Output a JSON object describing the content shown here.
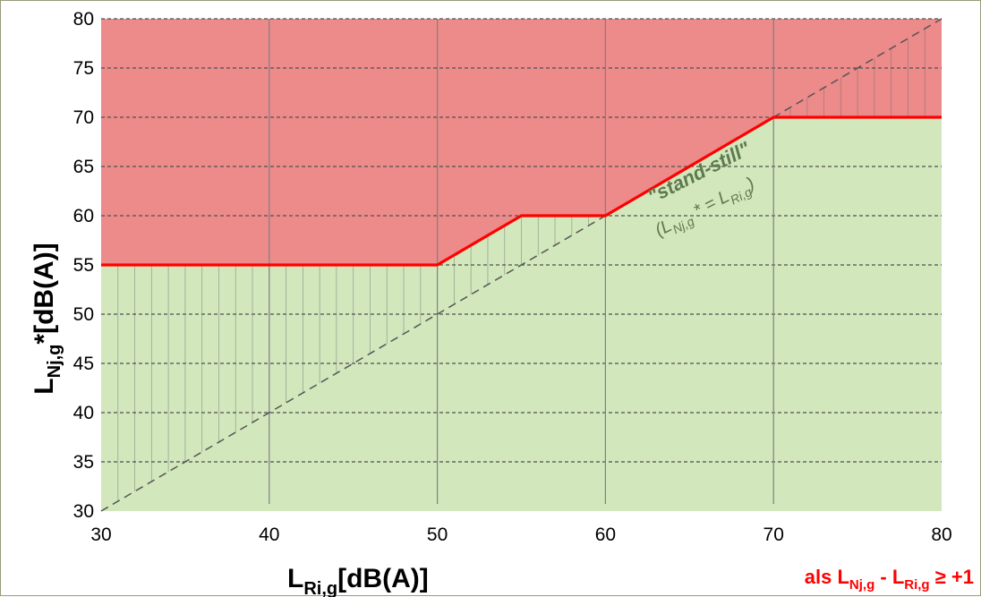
{
  "chart_data": {
    "type": "area",
    "xlim": [
      30,
      80
    ],
    "ylim": [
      30,
      80
    ],
    "x_ticks": [
      "30",
      "40",
      "50",
      "60",
      "70",
      "80"
    ],
    "y_ticks": [
      "30",
      "35",
      "40",
      "45",
      "50",
      "55",
      "60",
      "65",
      "70",
      "75",
      "80"
    ],
    "grid": true,
    "xlabel": {
      "main": "L",
      "sub": "Ri,g",
      "rest": "[dB(A)]"
    },
    "ylabel": {
      "main": "L",
      "sub": "Nj,g",
      "rest": "*[dB(A)]"
    },
    "series": [
      {
        "role": "limit",
        "color": "#ff0000",
        "x": [
          30,
          50,
          55,
          60,
          70,
          80
        ],
        "y": [
          55,
          55,
          60,
          60,
          70,
          70
        ]
      },
      {
        "role": "diagonal",
        "color": "#555555",
        "x": [
          30,
          80
        ],
        "y": [
          30,
          80
        ]
      }
    ],
    "regions": [
      {
        "color": "#ed8a8a",
        "position": "above limit"
      },
      {
        "color": "#d3e7bd",
        "position": "below limit"
      }
    ],
    "annotations": {
      "standstill": "\"stand-still\"",
      "relation": {
        "open": "(L",
        "sub1": "Nj,g",
        "mid": " * = L",
        "sub2": "Ri,g",
        "close": ")"
      },
      "condition": {
        "prefix": "als L",
        "sub1": "Nj,g",
        "mid": " - L",
        "sub2": "Ri,g",
        "suffix": " ≥ +1"
      }
    }
  }
}
